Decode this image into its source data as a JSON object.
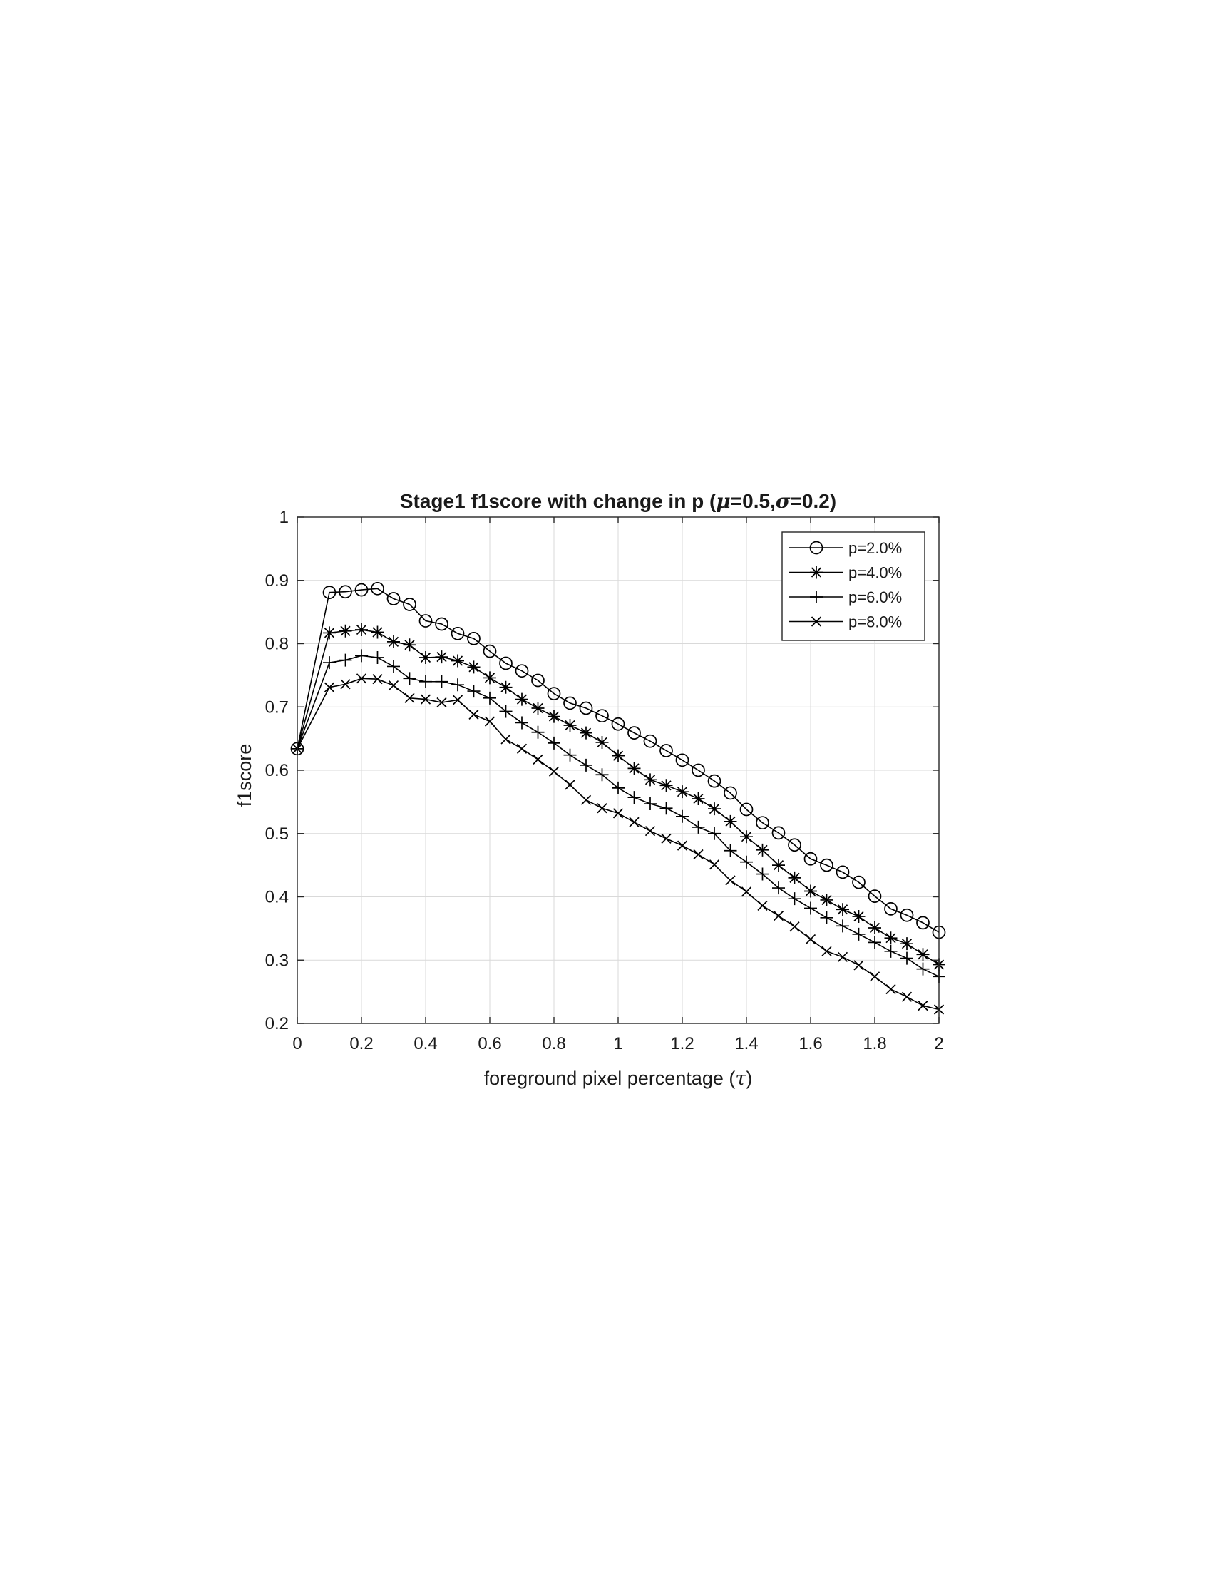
{
  "chart_data": {
    "type": "line",
    "title": "Stage1 f1score with change in p (μ=0.5,σ=0.2)",
    "title_parts": {
      "prefix": "Stage1 f1score with change in p (",
      "mu_symbol": "μ",
      "mu_value": "=0.5,",
      "sigma_symbol": "σ",
      "sigma_value": "=0.2)"
    },
    "xlabel": "foreground pixel percentage (τ)",
    "xlabel_parts": {
      "text": "foreground pixel percentage (",
      "symbol": "τ",
      "close": ")"
    },
    "ylabel": "f1score",
    "xlim": [
      0,
      2
    ],
    "ylim": [
      0.2,
      1
    ],
    "xticks": [
      0,
      0.2,
      0.4,
      0.6,
      0.8,
      1,
      1.2,
      1.4,
      1.6,
      1.8,
      2
    ],
    "xtick_labels": [
      "0",
      "0.2",
      "0.4",
      "0.6",
      "0.8",
      "1",
      "1.2",
      "1.4",
      "1.6",
      "1.8",
      "2"
    ],
    "yticks": [
      0.2,
      0.3,
      0.4,
      0.5,
      0.6,
      0.7,
      0.8,
      0.9,
      1
    ],
    "ytick_labels": [
      "0.2",
      "0.3",
      "0.4",
      "0.5",
      "0.6",
      "0.7",
      "0.8",
      "0.9",
      "1"
    ],
    "grid": true,
    "legend_position": "top-right",
    "x": [
      0,
      0.1,
      0.15,
      0.2,
      0.25,
      0.3,
      0.35,
      0.4,
      0.45,
      0.5,
      0.55,
      0.6,
      0.65,
      0.7,
      0.75,
      0.8,
      0.85,
      0.9,
      0.95,
      1,
      1.05,
      1.1,
      1.15,
      1.2,
      1.25,
      1.3,
      1.35,
      1.4,
      1.45,
      1.5,
      1.55,
      1.6,
      1.65,
      1.7,
      1.75,
      1.8,
      1.85,
      1.9,
      1.95,
      2
    ],
    "series": [
      {
        "name": "p=2.0%",
        "marker": "circle",
        "values": [
          0.634,
          0.881,
          0.882,
          0.885,
          0.887,
          0.871,
          0.862,
          0.836,
          0.831,
          0.816,
          0.808,
          0.788,
          0.769,
          0.757,
          0.742,
          0.721,
          0.706,
          0.698,
          0.686,
          0.673,
          0.659,
          0.646,
          0.631,
          0.616,
          0.6,
          0.583,
          0.564,
          0.538,
          0.517,
          0.501,
          0.482,
          0.46,
          0.45,
          0.439,
          0.423,
          0.401,
          0.381,
          0.371,
          0.359,
          0.344
        ]
      },
      {
        "name": "p=4.0%",
        "marker": "asterisk",
        "values": [
          0.634,
          0.817,
          0.82,
          0.822,
          0.818,
          0.803,
          0.798,
          0.778,
          0.779,
          0.773,
          0.763,
          0.746,
          0.731,
          0.712,
          0.698,
          0.685,
          0.671,
          0.659,
          0.644,
          0.623,
          0.603,
          0.585,
          0.576,
          0.566,
          0.555,
          0.539,
          0.519,
          0.495,
          0.474,
          0.45,
          0.43,
          0.409,
          0.395,
          0.38,
          0.369,
          0.351,
          0.335,
          0.326,
          0.309,
          0.293
        ]
      },
      {
        "name": "p=6.0%",
        "marker": "plus",
        "values": [
          0.634,
          0.77,
          0.774,
          0.781,
          0.778,
          0.764,
          0.745,
          0.74,
          0.74,
          0.735,
          0.725,
          0.714,
          0.693,
          0.675,
          0.66,
          0.643,
          0.624,
          0.608,
          0.593,
          0.572,
          0.557,
          0.547,
          0.54,
          0.527,
          0.51,
          0.5,
          0.473,
          0.455,
          0.436,
          0.414,
          0.397,
          0.382,
          0.367,
          0.354,
          0.341,
          0.328,
          0.314,
          0.303,
          0.286,
          0.274
        ]
      },
      {
        "name": "p=8.0%",
        "marker": "x",
        "values": [
          0.634,
          0.731,
          0.736,
          0.745,
          0.744,
          0.734,
          0.714,
          0.712,
          0.707,
          0.711,
          0.688,
          0.677,
          0.649,
          0.634,
          0.617,
          0.598,
          0.577,
          0.553,
          0.54,
          0.532,
          0.518,
          0.504,
          0.492,
          0.481,
          0.467,
          0.451,
          0.426,
          0.408,
          0.386,
          0.37,
          0.353,
          0.333,
          0.314,
          0.305,
          0.292,
          0.274,
          0.254,
          0.242,
          0.228,
          0.222
        ]
      }
    ]
  }
}
